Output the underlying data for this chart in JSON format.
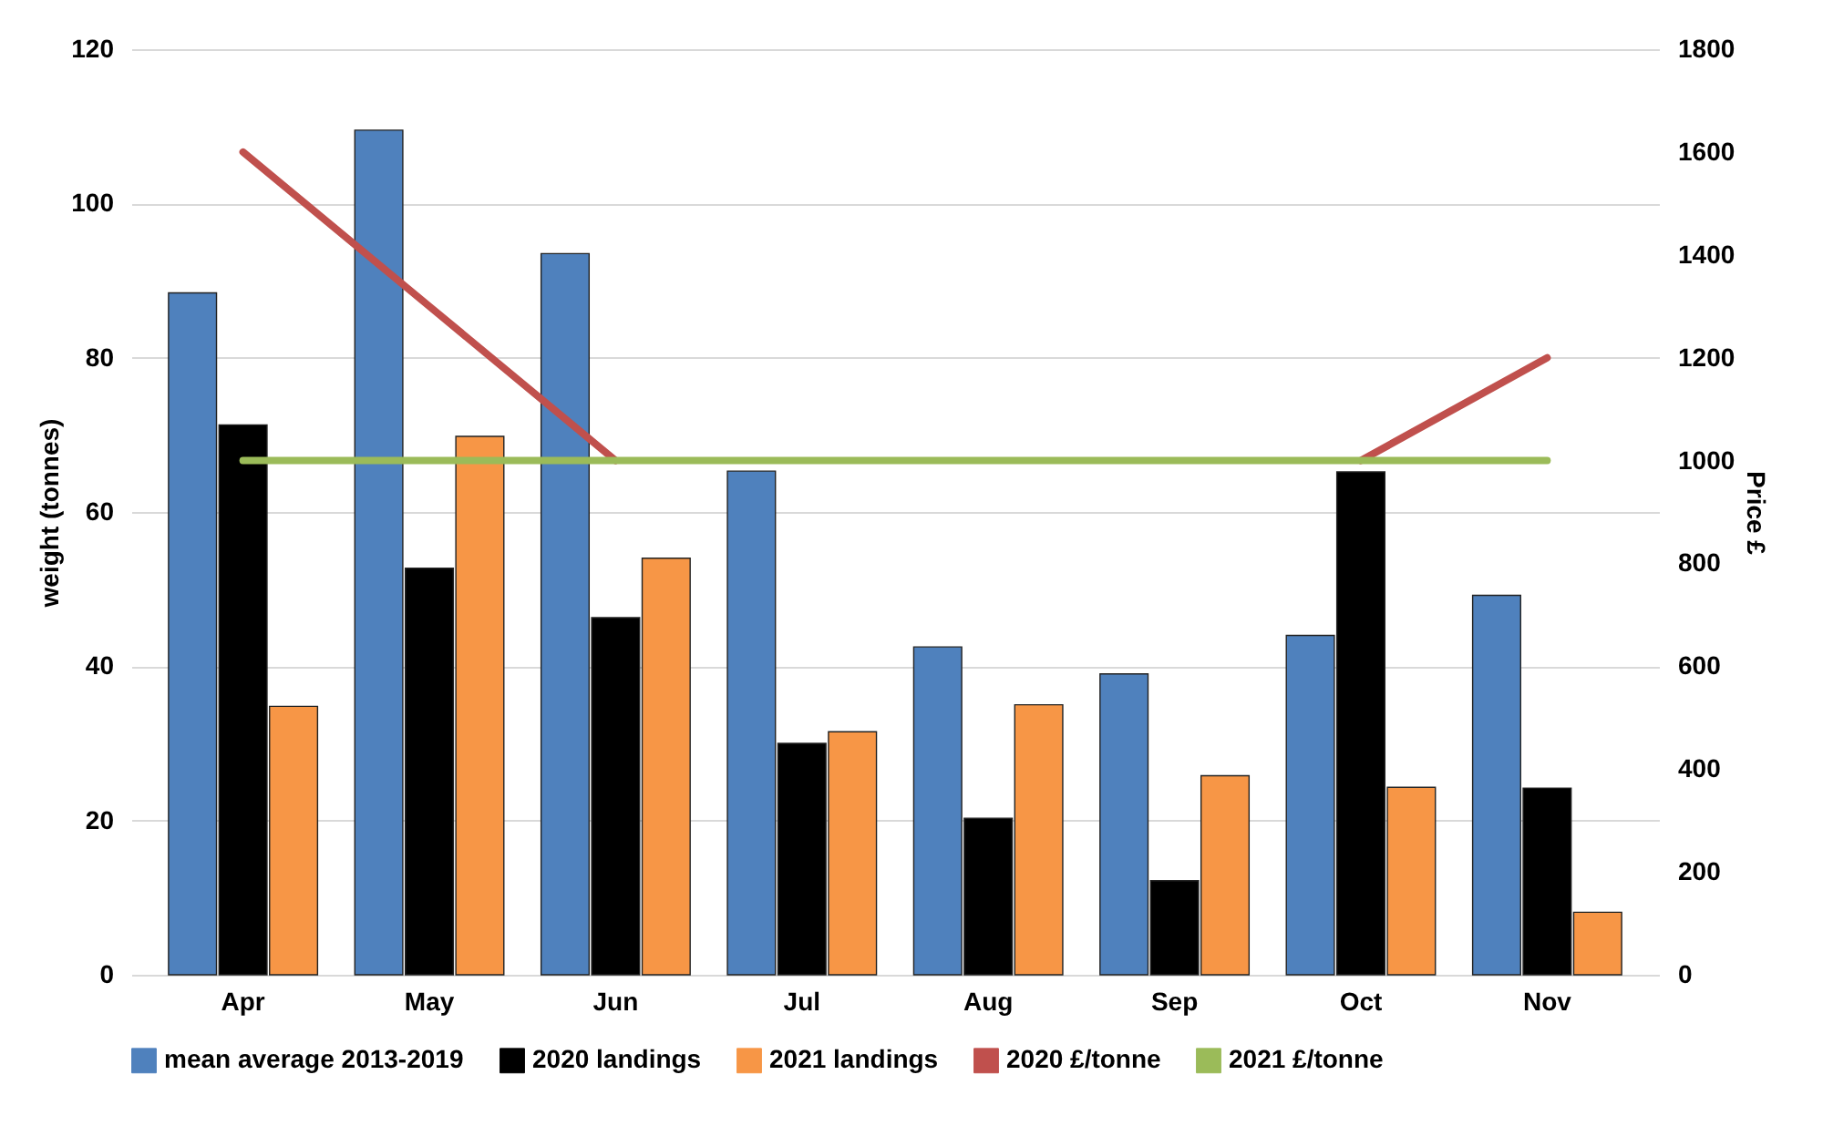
{
  "chart_data": {
    "type": "bar",
    "categories": [
      "Apr",
      "May",
      "Jun",
      "Jul",
      "Aug",
      "Sep",
      "Oct",
      "Nov"
    ],
    "ylabel": "weight (tonnes)",
    "y2label": "Price £",
    "ylim": [
      0,
      120
    ],
    "yticks": [
      0,
      20,
      40,
      60,
      80,
      100,
      120
    ],
    "y2lim": [
      0,
      1800
    ],
    "y2ticks": [
      0,
      200,
      400,
      600,
      800,
      1000,
      1200,
      1400,
      1600,
      1800
    ],
    "grid": "y",
    "legend": "bottom",
    "series": [
      {
        "name": "mean average 2013-2019",
        "color": "#4f81bd",
        "values": [
          88.4,
          109.5,
          93.5,
          65.3,
          42.5,
          39,
          44,
          49.2
        ]
      },
      {
        "name": "2020 landings",
        "color": "#000000",
        "values": [
          71.3,
          52.7,
          46.3,
          30,
          20.3,
          12.2,
          65.2,
          24.2
        ]
      },
      {
        "name": "2021 landings",
        "color": "#f79646",
        "values": [
          34.8,
          69.8,
          54,
          31.5,
          35,
          25.8,
          24.3,
          8.1
        ]
      },
      {
        "name": "2020 £/tonne",
        "color": "#c0504d",
        "type": "line",
        "axis": "y2",
        "values": [
          1600,
          1300,
          1000,
          null,
          null,
          null,
          1000,
          1200
        ]
      },
      {
        "name": "2021 £/tonne",
        "color": "#9bbb59",
        "type": "line",
        "axis": "y2",
        "values": [
          1000,
          1000,
          1000,
          1000,
          1000,
          1000,
          1000,
          1000
        ]
      }
    ]
  }
}
